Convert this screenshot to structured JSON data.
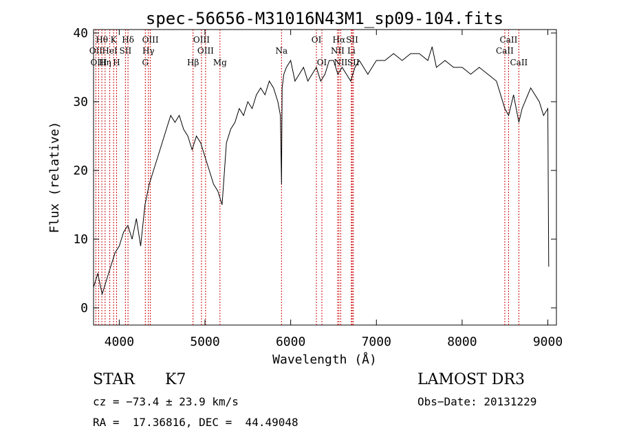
{
  "chart_data": {
    "type": "line",
    "title": "spec-56656-M31016N43M1_sp09-104.fits",
    "xlabel": "Wavelength (Å)",
    "ylabel": "Flux (relative)",
    "xlim": [
      3700,
      9100
    ],
    "ylim": [
      -2.5,
      40.5
    ],
    "xticks": [
      4000,
      5000,
      6000,
      7000,
      8000,
      9000
    ],
    "yticks": [
      0,
      10,
      20,
      30,
      40
    ],
    "series": [
      {
        "name": "flux",
        "x": [
          3700,
          3750,
          3800,
          3850,
          3900,
          3950,
          4000,
          4050,
          4100,
          4150,
          4200,
          4250,
          4300,
          4350,
          4400,
          4450,
          4500,
          4550,
          4600,
          4650,
          4700,
          4750,
          4800,
          4850,
          4900,
          4950,
          5000,
          5050,
          5100,
          5150,
          5200,
          5250,
          5300,
          5350,
          5400,
          5450,
          5500,
          5550,
          5600,
          5650,
          5700,
          5750,
          5800,
          5850,
          5880,
          5893,
          5900,
          5920,
          5950,
          6000,
          6050,
          6100,
          6150,
          6200,
          6250,
          6300,
          6350,
          6400,
          6450,
          6500,
          6550,
          6600,
          6650,
          6700,
          6750,
          6800,
          6850,
          6900,
          6950,
          7000,
          7100,
          7200,
          7300,
          7400,
          7500,
          7600,
          7650,
          7700,
          7800,
          7900,
          8000,
          8100,
          8200,
          8300,
          8400,
          8498,
          8542,
          8600,
          8662,
          8700,
          8800,
          8900,
          8950,
          9000,
          9010
        ],
        "y": [
          3,
          5,
          2,
          4,
          6,
          8,
          9,
          11,
          12,
          10,
          13,
          9,
          15,
          18,
          20,
          22,
          24,
          26,
          28,
          27,
          28,
          26,
          25,
          23,
          25,
          24,
          22,
          20,
          18,
          17,
          15,
          24,
          26,
          27,
          29,
          28,
          30,
          29,
          31,
          32,
          31,
          33,
          32,
          30,
          28,
          18,
          32,
          34,
          35,
          36,
          33,
          34,
          35,
          33,
          34,
          35,
          33,
          34,
          36,
          36,
          34,
          35,
          34,
          33,
          35,
          36,
          35,
          34,
          35,
          36,
          36,
          37,
          36,
          37,
          37,
          36,
          38,
          35,
          36,
          35,
          35,
          34,
          35,
          34,
          33,
          29,
          28,
          31,
          27,
          29,
          32,
          30,
          28,
          29,
          6
        ]
      }
    ],
    "lines": [
      {
        "name": "Hθ",
        "wave": 3797,
        "row": 1
      },
      {
        "name": "OII",
        "wave": 3727,
        "row": 2
      },
      {
        "name": "OIII",
        "wave": 3760,
        "row": 3
      },
      {
        "name": "Hη",
        "wave": 3835,
        "row": 3
      },
      {
        "name": "K",
        "wave": 3934,
        "row": 1
      },
      {
        "name": "H",
        "wave": 3969,
        "row": 3
      },
      {
        "name": "HeI",
        "wave": 3889,
        "row": 2
      },
      {
        "name": "SII",
        "wave": 4072,
        "row": 2
      },
      {
        "name": "Hδ",
        "wave": 4102,
        "row": 1
      },
      {
        "name": "OIII",
        "wave": 4363,
        "row": 1
      },
      {
        "name": "Hγ",
        "wave": 4340,
        "row": 2
      },
      {
        "name": "G",
        "wave": 4304,
        "row": 3
      },
      {
        "name": "OIII",
        "wave": 4959,
        "row": 1
      },
      {
        "name": "OIII",
        "wave": 5007,
        "row": 2
      },
      {
        "name": "Hβ",
        "wave": 4861,
        "row": 3
      },
      {
        "name": "Mg",
        "wave": 5175,
        "row": 3
      },
      {
        "name": "Na",
        "wave": 5893,
        "row": 2
      },
      {
        "name": "OI",
        "wave": 6300,
        "row": 1
      },
      {
        "name": "OI",
        "wave": 6364,
        "row": 3
      },
      {
        "name": "Hα",
        "wave": 6563,
        "row": 1
      },
      {
        "name": "SII",
        "wave": 6717,
        "row": 1
      },
      {
        "name": "NII",
        "wave": 6548,
        "row": 2
      },
      {
        "name": "NII",
        "wave": 6584,
        "row": 3
      },
      {
        "name": "Li",
        "wave": 6708,
        "row": 2
      },
      {
        "name": "SII",
        "wave": 6731,
        "row": 3
      },
      {
        "name": "CaII",
        "wave": 8542,
        "row": 1
      },
      {
        "name": "CaII",
        "wave": 8498,
        "row": 2
      },
      {
        "name": "CaII",
        "wave": 8662,
        "row": 3
      }
    ]
  },
  "info": {
    "object_class": "STAR",
    "subclass": "K7",
    "survey": "LAMOST DR3",
    "cz": "cz = −73.4 ± 23.9 km/s",
    "obs_date": "Obs−Date: 20131229",
    "coords": "RA =  17.36816, DEC =  44.49048"
  },
  "colors": {
    "spectrum": "#000000",
    "line_marker": "#cc0000",
    "axis": "#000000"
  }
}
